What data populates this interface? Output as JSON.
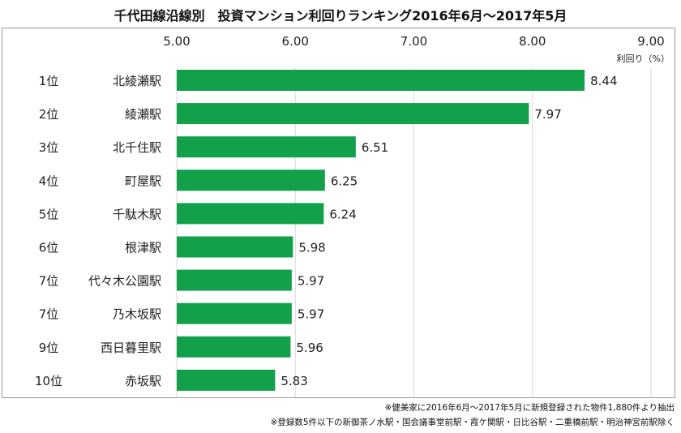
{
  "chart_data": {
    "type": "bar",
    "orientation": "horizontal",
    "title": "千代田線沿線別　投資マンション利回りランキング2016年6月～2017年5月",
    "xlabel": "利回り（%）",
    "xlim": [
      5.0,
      9.0
    ],
    "xticks": [
      "5.00",
      "6.00",
      "7.00",
      "8.00",
      "9.00"
    ],
    "grid": true,
    "color": "#13a04a",
    "ranks": [
      "1位",
      "2位",
      "3位",
      "4位",
      "5位",
      "6位",
      "7位",
      "7位",
      "9位",
      "10位"
    ],
    "categories": [
      "北綾瀬駅",
      "綾瀬駅",
      "北千住駅",
      "町屋駅",
      "千駄木駅",
      "根津駅",
      "代々木公園駅",
      "乃木坂駅",
      "西日暮里駅",
      "赤坂駅"
    ],
    "values": [
      8.44,
      7.97,
      6.51,
      6.25,
      6.24,
      5.98,
      5.97,
      5.97,
      5.96,
      5.83
    ],
    "value_labels": [
      "8.44",
      "7.97",
      "6.51",
      "6.25",
      "6.24",
      "5.98",
      "5.97",
      "5.97",
      "5.96",
      "5.83"
    ]
  },
  "notes": [
    "※健美家に2016年6月～2017年5月に新規登録された物件1,880件より抽出",
    "※登録数5件以下の新御茶ノ水駅・国会議事堂前駅・霞ケ関駅・日比谷駅・二重橋前駅・明治神宮前駅除く"
  ]
}
